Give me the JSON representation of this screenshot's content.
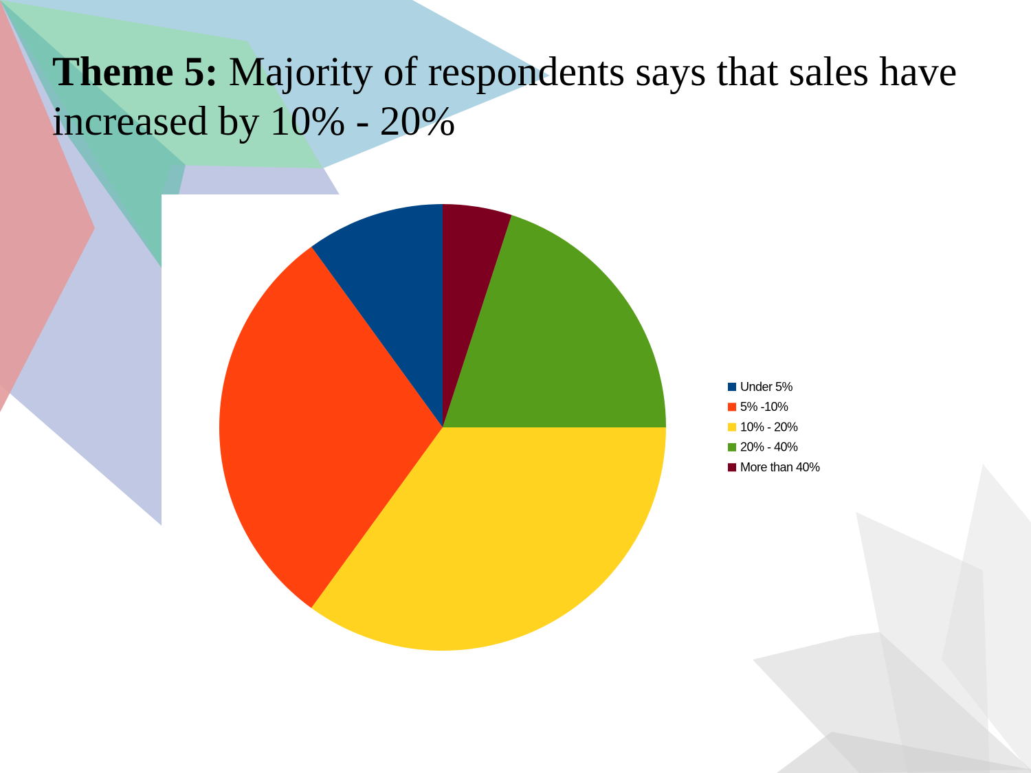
{
  "chart_data": {
    "type": "pie",
    "title_prefix": "Theme 5:",
    "title": "Majority of respondents says that sales have increased by 10% - 20%",
    "categories": [
      "Under 5%",
      "5% -10%",
      "10% - 20%",
      "20% - 40%",
      "More than 40%"
    ],
    "values": [
      10,
      30,
      35,
      20,
      5
    ],
    "colors": [
      "#004586",
      "#ff420e",
      "#ffd320",
      "#579d1c",
      "#7e0021"
    ],
    "legend": "right"
  }
}
